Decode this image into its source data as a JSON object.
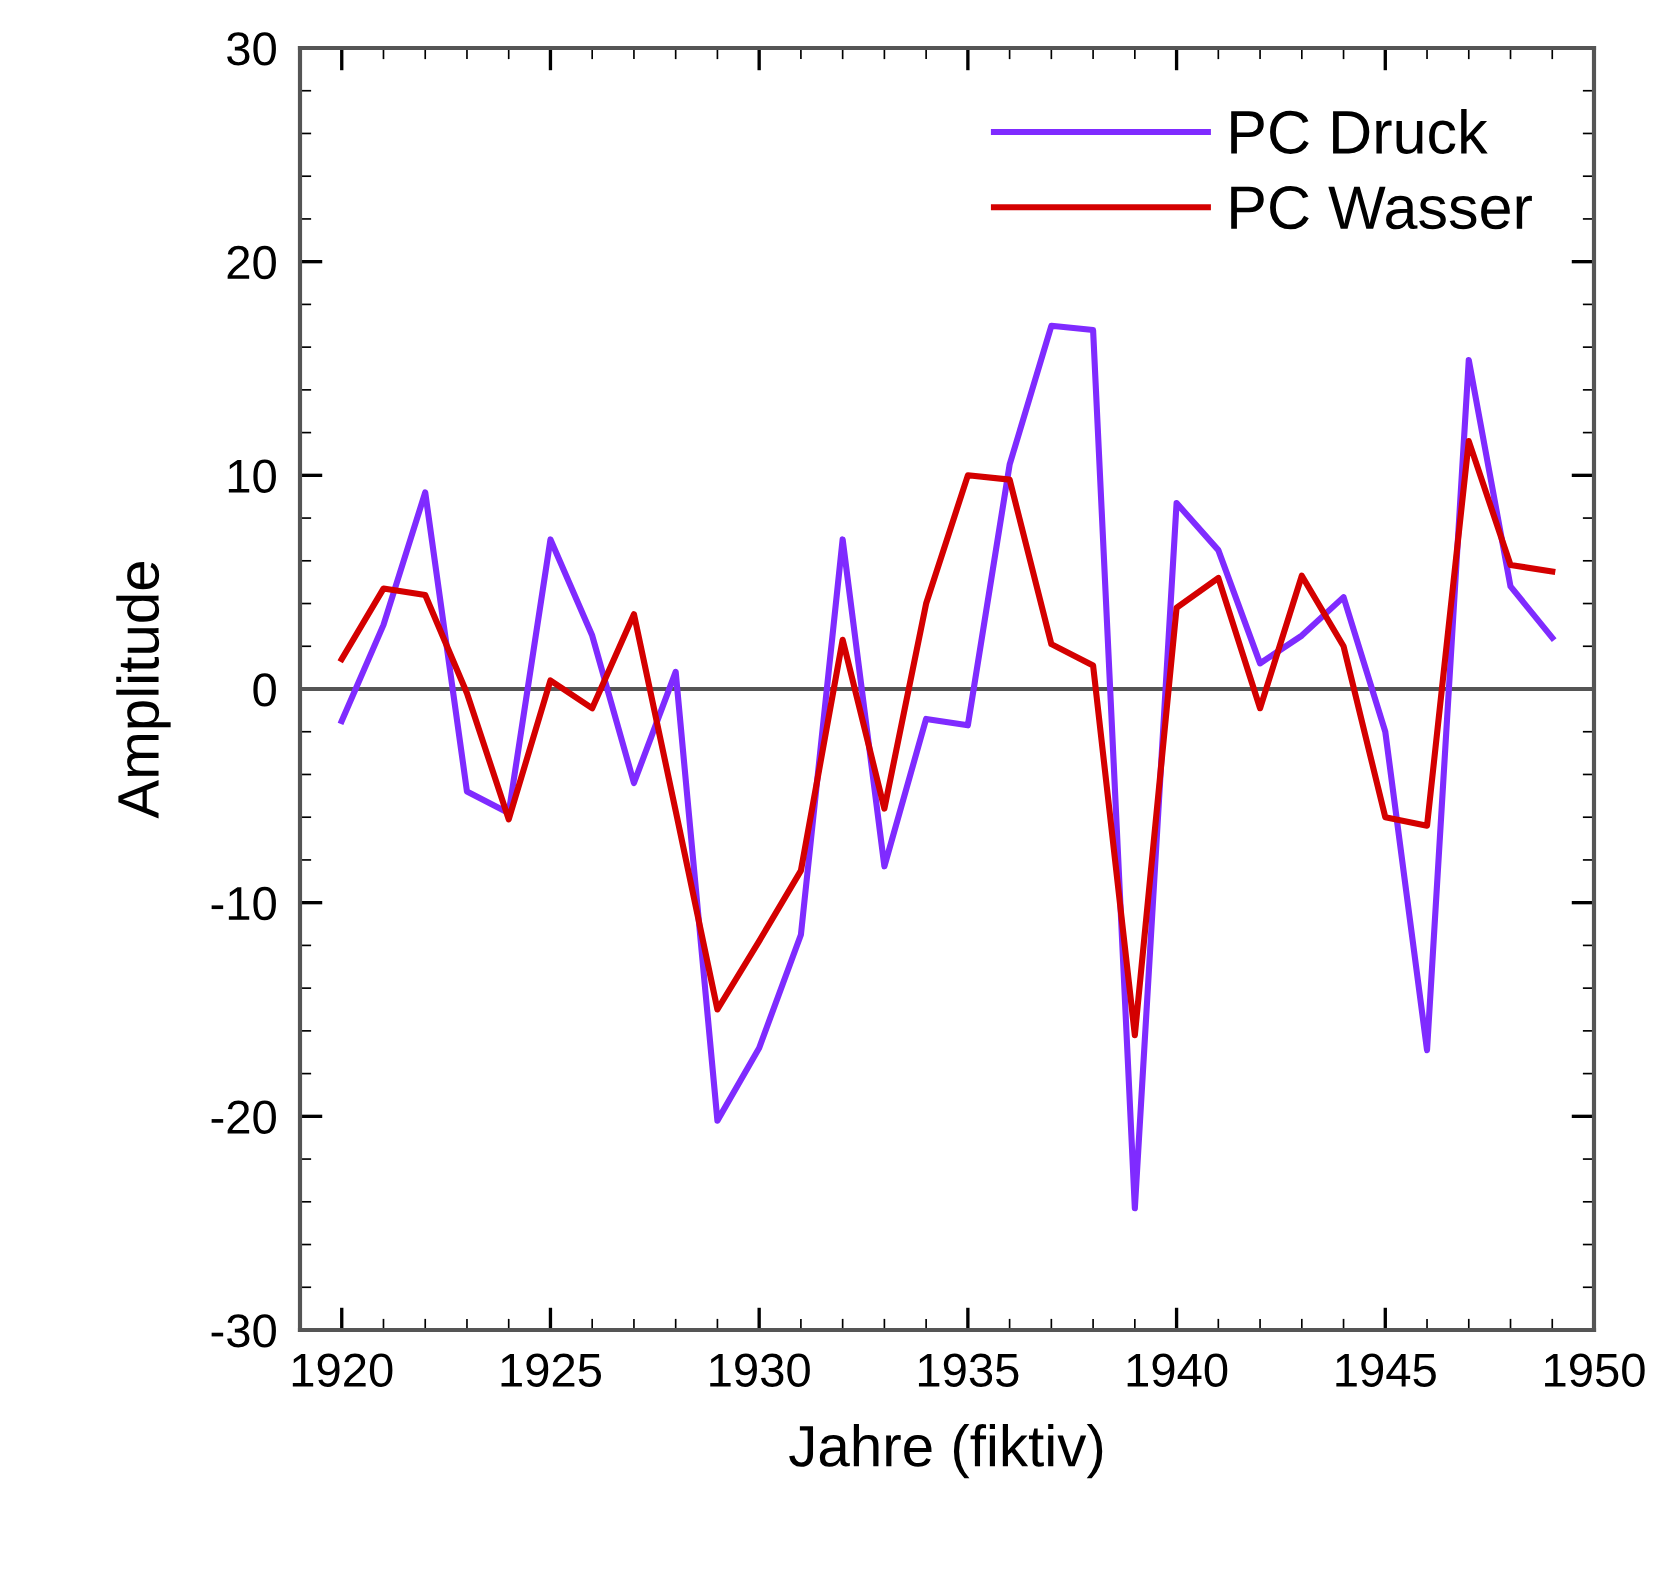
{
  "chart_data": {
    "type": "line",
    "xlabel": "Jahre (fiktiv)",
    "ylabel": "Amplitude",
    "x": [
      1920,
      1921,
      1922,
      1923,
      1924,
      1925,
      1926,
      1927,
      1928,
      1929,
      1930,
      1931,
      1932,
      1933,
      1934,
      1935,
      1936,
      1937,
      1938,
      1939,
      1940,
      1941,
      1942,
      1943,
      1944,
      1945,
      1946,
      1947,
      1948,
      1949
    ],
    "series": [
      {
        "name": "PC Druck",
        "color": "#7f2bff",
        "values": [
          -1.5,
          3,
          9.2,
          -4.8,
          -5.8,
          7,
          2.5,
          -4.4,
          0.8,
          -20.2,
          -16.8,
          -11.5,
          7,
          -8.3,
          -1.4,
          -1.7,
          10.5,
          17,
          16.8,
          -24.3,
          8.7,
          6.5,
          1.2,
          2.5,
          4.3,
          -2,
          -16.9,
          15.4,
          4.8,
          2.4
        ]
      },
      {
        "name": "PC Wasser",
        "color": "#d40000",
        "values": [
          1.4,
          4.7,
          4.4,
          -0.2,
          -6.1,
          0.4,
          -0.9,
          3.5,
          -5.7,
          -15,
          -11.8,
          -8.5,
          2.3,
          -5.6,
          4,
          10,
          9.8,
          2.1,
          1.1,
          -16.2,
          3.8,
          5.2,
          -0.9,
          5.3,
          2,
          -6,
          -6.4,
          11.6,
          5.8,
          5.5
        ]
      }
    ],
    "xlim": [
      1919,
      1950
    ],
    "xticks": [
      1920,
      1925,
      1930,
      1935,
      1940,
      1945,
      1950
    ],
    "ylim": [
      -30,
      30
    ],
    "yticks": [
      -30,
      -20,
      -10,
      0,
      10,
      20,
      30
    ],
    "ref_lines": [
      {
        "axis": "y",
        "value": 0,
        "color": "#555555"
      }
    ],
    "legend": "top right",
    "grid": false,
    "marker": "none",
    "line_style": "solid"
  }
}
